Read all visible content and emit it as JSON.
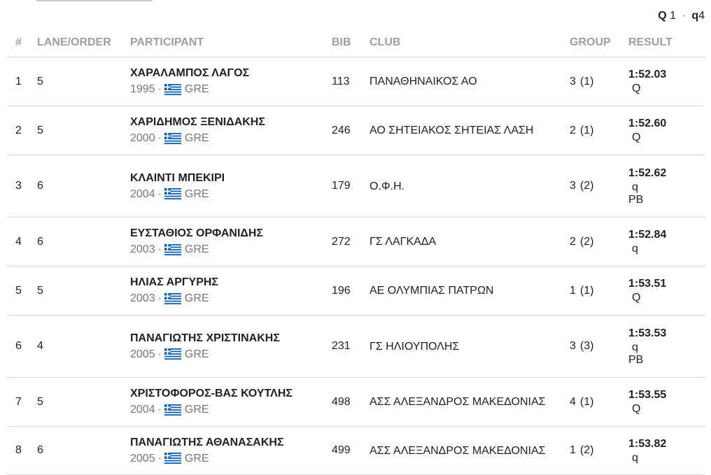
{
  "summary": {
    "q_upper": "Q",
    "q_upper_count": "1",
    "dot": "·",
    "q_lower": "q",
    "q_lower_count": "4"
  },
  "headers": {
    "rank": "#",
    "lane": "LANE/ORDER",
    "participant": "PARTICIPANT",
    "bib": "BIB",
    "club": "CLUB",
    "group": "GROUP",
    "result": "RESULT"
  },
  "flag_icon": "greece-flag-icon",
  "colors": {
    "flag_blue": "#0d5eaf",
    "header_text": "#9e9e9e",
    "divider": "#d9d9d9"
  },
  "rows": [
    {
      "rank": "1",
      "lane": "5",
      "name": "ΧΑΡΑΛΑΜΠΟΣ ΛΑΓΟΣ",
      "year": "1995",
      "country": "GRE",
      "bib": "113",
      "club": "ΠΑΝΑΘΗΝΑΙΚΟΣ ΑΟ",
      "group": "3",
      "group_sub": "(1)",
      "time": "1:52.03",
      "qual": "Q",
      "note": ""
    },
    {
      "rank": "2",
      "lane": "5",
      "name": "ΧΑΡΙΔΗΜΟΣ ΞΕΝΙΔΑΚΗΣ",
      "year": "2000",
      "country": "GRE",
      "bib": "246",
      "club": "ΑΟ ΣΗΤΕΙΑΚΟΣ ΣΗΤΕΙΑΣ ΛΑΣΗ",
      "group": "2",
      "group_sub": "(1)",
      "time": "1:52.60",
      "qual": "Q",
      "note": ""
    },
    {
      "rank": "3",
      "lane": "6",
      "name": "ΚΛΑΙΝΤΙ ΜΠΕΚΙΡΙ",
      "year": "2004",
      "country": "GRE",
      "bib": "179",
      "club": "Ο.Φ.Η.",
      "group": "3",
      "group_sub": "(2)",
      "time": "1:52.62",
      "qual": "q",
      "note": "PB"
    },
    {
      "rank": "4",
      "lane": "6",
      "name": "ΕΥΣΤΑΘΙΟΣ ΟΡΦΑΝΙΔΗΣ",
      "year": "2003",
      "country": "GRE",
      "bib": "272",
      "club": "ΓΣ ΛΑΓΚΑΔΑ",
      "group": "2",
      "group_sub": "(2)",
      "time": "1:52.84",
      "qual": "q",
      "note": ""
    },
    {
      "rank": "5",
      "lane": "5",
      "name": "ΗΛΙΑΣ ΑΡΓΥΡΗΣ",
      "year": "2003",
      "country": "GRE",
      "bib": "196",
      "club": "ΑΕ ΟΛΥΜΠΙΑΣ ΠΑΤΡΩΝ",
      "group": "1",
      "group_sub": "(1)",
      "time": "1:53.51",
      "qual": "Q",
      "note": ""
    },
    {
      "rank": "6",
      "lane": "4",
      "name": "ΠΑΝΑΓΙΩΤΗΣ ΧΡΙΣΤΙΝΑΚΗΣ",
      "year": "2005",
      "country": "GRE",
      "bib": "231",
      "club": "ΓΣ ΗΛΙΟΥΠΟΛΗΣ",
      "group": "3",
      "group_sub": "(3)",
      "time": "1:53.53",
      "qual": "q",
      "note": "PB"
    },
    {
      "rank": "7",
      "lane": "5",
      "name": "ΧΡΙΣΤΟΦΟΡΟΣ-ΒΑΣ ΚΟΥΤΛΗΣ",
      "year": "2004",
      "country": "GRE",
      "bib": "498",
      "club": "ΑΣΣ ΑΛΕΞΑΝΔΡΟΣ ΜΑΚΕΔΟΝΙΑΣ",
      "group": "4",
      "group_sub": "(1)",
      "time": "1:53.55",
      "qual": "Q",
      "note": ""
    },
    {
      "rank": "8",
      "lane": "6",
      "name": "ΠΑΝΑΓΙΩΤΗΣ ΑΘΑΝΑΣΑΚΗΣ",
      "year": "2005",
      "country": "GRE",
      "bib": "499",
      "club": "ΑΣΣ ΑΛΕΞΑΝΔΡΟΣ ΜΑΚΕΔΟΝΙΑΣ",
      "group": "1",
      "group_sub": "(2)",
      "time": "1:53.82",
      "qual": "q",
      "note": ""
    }
  ]
}
